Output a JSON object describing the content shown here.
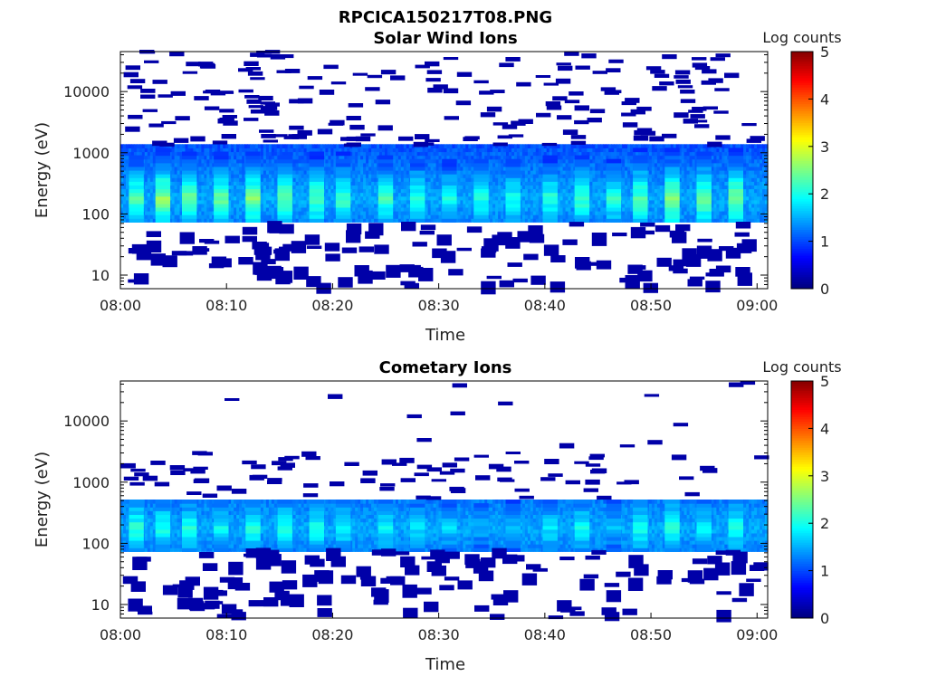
{
  "figure": {
    "title": "RPCICA150217T08.PNG"
  },
  "chart_data": [
    {
      "type": "heatmap",
      "title": "Solar Wind Ions",
      "xlabel": "Time",
      "ylabel": "Energy (eV)",
      "x_tick_labels": [
        "08:00",
        "08:10",
        "08:20",
        "08:30",
        "08:40",
        "08:50",
        "09:00"
      ],
      "x_range_minutes": [
        0,
        61
      ],
      "y_scale": "log",
      "y_ticks": [
        10,
        100,
        1000,
        10000
      ],
      "y_tick_labels": [
        "10",
        "100",
        "1000",
        "10000"
      ],
      "y_range_ev": [
        6,
        45000
      ],
      "colorbar": {
        "label": "Log counts",
        "range": [
          0,
          5
        ],
        "ticks": [
          "0",
          "1",
          "2",
          "3",
          "4",
          "5"
        ],
        "colormap": "jet"
      },
      "continuous_band": {
        "low_ev": 70,
        "high_ev": 1300,
        "peak_ev": 180
      },
      "bright_sweeps_minutes": [
        1.5,
        4,
        6.5,
        9.5,
        12.5,
        15.5,
        18.5,
        21,
        25,
        28,
        31,
        34,
        37,
        40.5,
        43.5,
        46.5,
        49,
        52,
        55,
        58
      ],
      "sweep_peak_log_counts": [
        2.3,
        2.6,
        2.4,
        2.4,
        2.5,
        2.4,
        2.3,
        2.2,
        2.2,
        2.1,
        2.0,
        2.0,
        2.0,
        2.1,
        2.2,
        2.1,
        2.3,
        2.6,
        2.4,
        2.5
      ]
    },
    {
      "type": "heatmap",
      "title": "Cometary Ions",
      "xlabel": "Time",
      "ylabel": "Energy (eV)",
      "x_tick_labels": [
        "08:00",
        "08:10",
        "08:20",
        "08:30",
        "08:40",
        "08:50",
        "09:00"
      ],
      "x_range_minutes": [
        0,
        61
      ],
      "y_scale": "log",
      "y_ticks": [
        10,
        100,
        1000,
        10000
      ],
      "y_tick_labels": [
        "10",
        "100",
        "1000",
        "10000"
      ],
      "y_range_ev": [
        6,
        45000
      ],
      "colorbar": {
        "label": "Log counts",
        "range": [
          0,
          5
        ],
        "ticks": [
          "0",
          "1",
          "2",
          "3",
          "4",
          "5"
        ],
        "colormap": "jet"
      },
      "continuous_band": {
        "low_ev": 75,
        "high_ev": 550,
        "peak_ev": 180
      },
      "bright_sweeps_minutes": [
        1.5,
        4,
        6.5,
        9.5,
        12.5,
        15.5,
        18.5,
        21,
        25,
        28,
        31,
        34,
        37,
        40.5,
        43.5,
        46.5,
        49,
        52,
        55,
        58
      ],
      "sweep_peak_log_counts": [
        2.1,
        2.0,
        2.0,
        1.9,
        2.0,
        2.0,
        2.0,
        1.9,
        1.9,
        1.8,
        1.7,
        1.5,
        1.6,
        1.8,
        1.9,
        1.6,
        2.0,
        2.1,
        1.9,
        2.0
      ]
    }
  ]
}
